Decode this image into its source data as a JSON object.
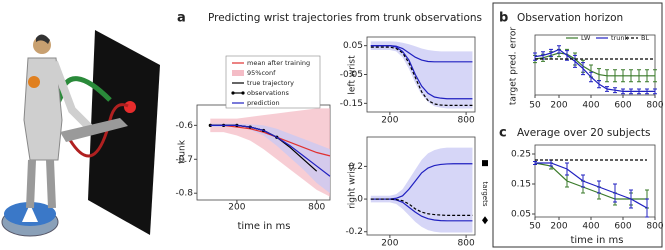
{
  "panels": [
    {
      "label": "a",
      "title": "Predicting wrist trajectories from trunk observations"
    },
    {
      "label": "b"
    },
    {
      "label": "c"
    }
  ],
  "chart_data": [
    {
      "type": "line",
      "ylabel": "trunk",
      "xlabel": "time in ms",
      "legend": "top",
      "x": [
        0,
        100,
        200,
        300,
        400,
        500,
        600,
        700,
        800,
        900
      ],
      "xlim": [
        -100,
        900
      ],
      "ylim": [
        -0.82,
        -0.54
      ],
      "xticks": [
        200,
        800
      ],
      "yticks": [
        -0.6,
        -0.7,
        -0.8
      ],
      "series": [
        {
          "name": "mean after training",
          "color": "#e03030",
          "values": [
            -0.6,
            -0.6,
            -0.605,
            -0.61,
            -0.62,
            -0.635,
            -0.65,
            -0.665,
            -0.68,
            -0.69
          ]
        },
        {
          "name": "95%conf",
          "color": "#f4bcc6",
          "upper": [
            -0.58,
            -0.58,
            -0.58,
            -0.575,
            -0.57,
            -0.565,
            -0.56,
            -0.555,
            -0.55,
            -0.55
          ],
          "lower": [
            -0.62,
            -0.62,
            -0.63,
            -0.645,
            -0.67,
            -0.7,
            -0.73,
            -0.76,
            -0.79,
            -0.81
          ]
        },
        {
          "name": "true trajectory",
          "color": "#000000",
          "values": [
            -0.6,
            -0.6,
            -0.6,
            -0.605,
            -0.615,
            -0.635,
            -0.665,
            -0.7,
            -0.735,
            null
          ]
        },
        {
          "name": "observations",
          "color": "#000000",
          "markers": true,
          "values": [
            -0.6,
            -0.6,
            -0.6,
            -0.605,
            -0.615,
            -0.635,
            null,
            null,
            null,
            null
          ]
        },
        {
          "name": "prediction",
          "color": "#2020c0",
          "values": [
            -0.6,
            -0.6,
            -0.6,
            -0.605,
            -0.615,
            -0.635,
            -0.66,
            -0.69,
            -0.72,
            -0.75
          ]
        },
        {
          "color": "#c8c8f4",
          "upper": [
            -0.595,
            -0.595,
            -0.595,
            -0.597,
            -0.6,
            -0.61,
            -0.625,
            -0.64,
            -0.655,
            -0.67
          ],
          "lower": [
            -0.605,
            -0.605,
            -0.605,
            -0.613,
            -0.63,
            -0.66,
            -0.695,
            -0.73,
            -0.77,
            -0.8
          ]
        }
      ]
    },
    {
      "type": "line",
      "ylabel": "left wrist",
      "x": [
        50,
        100,
        150,
        200,
        250,
        300,
        350,
        400,
        450,
        500,
        550,
        600,
        650,
        700,
        750,
        800,
        850
      ],
      "xlim": [
        20,
        870
      ],
      "ylim": [
        -0.18,
        0.08
      ],
      "xticks": [
        200,
        800
      ],
      "yticks": [
        0.05,
        -0.05,
        -0.15
      ],
      "series": [
        {
          "color": "#c8c8f4",
          "upper": [
            0.065,
            0.065,
            0.065,
            0.065,
            0.064,
            0.06,
            0.055,
            0.048,
            0.04,
            0.035,
            0.032,
            0.03,
            0.03,
            0.03,
            0.03,
            0.03,
            0.03
          ],
          "lower": [
            0.035,
            0.035,
            0.035,
            0.035,
            0.03,
            0.01,
            -0.03,
            -0.08,
            -0.12,
            -0.145,
            -0.16,
            -0.165,
            -0.168,
            -0.168,
            -0.168,
            -0.168,
            -0.168
          ]
        },
        {
          "color": "#2020c0",
          "values": [
            0.05,
            0.05,
            0.05,
            0.05,
            0.048,
            0.04,
            0.025,
            0.01,
            0.0,
            -0.005,
            -0.006,
            -0.006,
            -0.006,
            -0.006,
            -0.006,
            -0.006,
            -0.006
          ]
        },
        {
          "color": "#2020c0",
          "values": [
            0.05,
            0.05,
            0.05,
            0.05,
            0.045,
            0.03,
            0.0,
            -0.05,
            -0.09,
            -0.115,
            -0.128,
            -0.132,
            -0.134,
            -0.134,
            -0.134,
            -0.134,
            -0.134
          ]
        },
        {
          "color": "#000000",
          "dash": true,
          "values": [
            0.045,
            0.045,
            0.045,
            0.045,
            0.04,
            0.025,
            -0.01,
            -0.06,
            -0.11,
            -0.14,
            -0.152,
            -0.156,
            -0.157,
            -0.157,
            -0.157,
            -0.157,
            -0.157
          ]
        }
      ]
    },
    {
      "type": "line",
      "ylabel": "right wrist",
      "annotation": "targets",
      "target_values": [
        0.22,
        -0.13
      ],
      "x": [
        50,
        100,
        150,
        200,
        250,
        300,
        350,
        400,
        450,
        500,
        550,
        600,
        650,
        700,
        750,
        800,
        850
      ],
      "xlim": [
        20,
        870
      ],
      "ylim": [
        -0.22,
        0.38
      ],
      "xticks": [
        200,
        800
      ],
      "yticks": [
        0.2,
        0,
        -0.2
      ],
      "series": [
        {
          "color": "#c8c8f4",
          "upper": [
            0.02,
            0.02,
            0.02,
            0.02,
            0.03,
            0.06,
            0.12,
            0.18,
            0.24,
            0.28,
            0.3,
            0.31,
            0.315,
            0.315,
            0.315,
            0.315,
            0.315
          ],
          "lower": [
            -0.02,
            -0.02,
            -0.02,
            -0.02,
            -0.03,
            -0.06,
            -0.1,
            -0.14,
            -0.17,
            -0.19,
            -0.2,
            -0.205,
            -0.205,
            -0.205,
            -0.205,
            -0.205,
            -0.205
          ]
        },
        {
          "color": "#2020c0",
          "values": [
            0,
            0,
            0,
            0,
            0.005,
            0.02,
            0.06,
            0.11,
            0.16,
            0.19,
            0.205,
            0.212,
            0.215,
            0.216,
            0.216,
            0.216,
            0.216
          ]
        },
        {
          "color": "#2020c0",
          "values": [
            0,
            0,
            0,
            0,
            -0.005,
            -0.02,
            -0.05,
            -0.08,
            -0.105,
            -0.12,
            -0.128,
            -0.132,
            -0.133,
            -0.133,
            -0.133,
            -0.133,
            -0.133
          ]
        },
        {
          "color": "#000000",
          "dash": true,
          "values": [
            0,
            0,
            0,
            0,
            -0.003,
            -0.01,
            -0.03,
            -0.06,
            -0.08,
            -0.09,
            -0.095,
            -0.098,
            -0.1,
            -0.1,
            -0.1,
            -0.1,
            -0.1
          ]
        }
      ]
    },
    {
      "type": "line",
      "title": "Observation horizon",
      "ylabel": "target pred. error",
      "legend": "top",
      "x": [
        50,
        100,
        150,
        200,
        250,
        300,
        350,
        400,
        450,
        500,
        550,
        600,
        650,
        700,
        750,
        800
      ],
      "xlim": [
        50,
        800
      ],
      "ylim": [
        0,
        0.5
      ],
      "xticks": [
        50,
        200,
        400,
        600,
        800
      ],
      "series": [
        {
          "name": "LW",
          "color": "#3a7a2a",
          "values": [
            0.3,
            0.31,
            0.33,
            0.35,
            0.34,
            0.3,
            0.24,
            0.2,
            0.17,
            0.16,
            0.16,
            0.16,
            0.16,
            0.16,
            0.16,
            0.16
          ],
          "errors": [
            0.03,
            0.03,
            0.03,
            0.03,
            0.04,
            0.05,
            0.05,
            0.05,
            0.05,
            0.05,
            0.05,
            0.05,
            0.05,
            0.05,
            0.05,
            0.05
          ]
        },
        {
          "name": "trunk",
          "color": "#2020c0",
          "values": [
            0.32,
            0.33,
            0.35,
            0.38,
            0.33,
            0.28,
            0.22,
            0.15,
            0.09,
            0.05,
            0.04,
            0.03,
            0.03,
            0.03,
            0.03,
            0.03
          ],
          "errors": [
            0.03,
            0.03,
            0.03,
            0.03,
            0.04,
            0.05,
            0.05,
            0.04,
            0.03,
            0.02,
            0.02,
            0.02,
            0.02,
            0.02,
            0.02,
            0.02
          ]
        },
        {
          "name": "BL",
          "color": "#000000",
          "dash": true,
          "values": [
            0.3,
            0.3,
            0.3,
            0.3,
            0.3,
            0.3,
            0.3,
            0.3,
            0.3,
            0.3,
            0.3,
            0.3,
            0.3,
            0.3,
            0.3,
            0.3
          ]
        }
      ]
    },
    {
      "type": "line",
      "title": "Average over 20 subjects",
      "xlabel": "time in ms",
      "x": [
        50,
        150,
        250,
        350,
        450,
        550,
        650,
        750
      ],
      "xlim": [
        50,
        800
      ],
      "ylim": [
        0.04,
        0.28
      ],
      "xticks": [
        50,
        200,
        400,
        600,
        800
      ],
      "yticks": [
        0.25,
        0.15,
        0.05
      ],
      "series": [
        {
          "color": "#3a7a2a",
          "values": [
            0.22,
            0.21,
            0.16,
            0.14,
            0.12,
            0.1,
            0.1,
            0.1
          ],
          "errors": [
            0.005,
            0.01,
            0.02,
            0.02,
            0.02,
            0.02,
            0.02,
            0.03
          ]
        },
        {
          "color": "#2020c0",
          "values": [
            0.22,
            0.22,
            0.2,
            0.16,
            0.14,
            0.12,
            0.1,
            0.07
          ],
          "errors": [
            0.005,
            0.01,
            0.02,
            0.02,
            0.02,
            0.03,
            0.03,
            0.03
          ]
        },
        {
          "color": "#000000",
          "dash": true,
          "values": [
            0.23,
            0.23,
            0.23,
            0.23,
            0.23,
            0.23,
            0.23,
            0.23
          ]
        }
      ]
    }
  ]
}
